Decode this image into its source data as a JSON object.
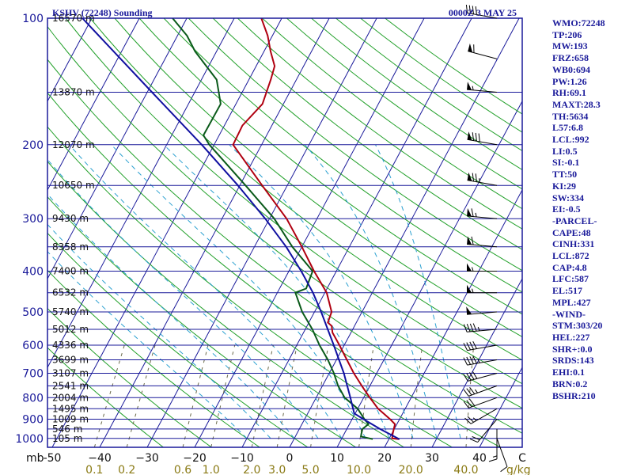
{
  "header": {
    "title": "KSHV (72248) Sounding",
    "datetime": "0000Z  3 MAY 25"
  },
  "indices": [
    "WMO:72248",
    "TP:206",
    "MW:193",
    "FRZ:658",
    "WB0:694",
    "PW:1.26",
    "RH:69.1",
    "MAXT:28.3",
    "TH:5634",
    "L57:6.8",
    "LCL:992",
    "LI:0.5",
    "SI:-0.1",
    "TT:50",
    "KI:29",
    "SW:334",
    "EI:-0.5",
    "-PARCEL-",
    "CAPE:48",
    "CINH:331",
    "LCL:872",
    "CAP:4.8",
    "LFC:587",
    "EL:517",
    "MPL:427",
    "-WIND-",
    "STM:303/20",
    "HEL:227",
    "SHR+:0.0",
    "SRDS:143",
    "EHI:0.1",
    "BRN:0.2",
    "BSHR:210"
  ],
  "chart_data": {
    "type": "skew-t",
    "pressure_axis": {
      "unit_label": "mb",
      "ticks": [
        100,
        200,
        300,
        400,
        500,
        600,
        700,
        800,
        900,
        1000
      ],
      "range": [
        1050,
        100
      ],
      "scale": "log"
    },
    "temperature_axis": {
      "unit_label": "C",
      "ticks": [
        -50,
        -40,
        -30,
        -20,
        -10,
        0,
        10,
        20,
        30,
        40
      ],
      "tick_labels": [
        "-50",
        "−40",
        "−30",
        "−20",
        "−10",
        "0",
        "10",
        "20",
        "30",
        "40"
      ]
    },
    "mixing_ratio_axis": {
      "unit_label": "g/kg",
      "values": [
        0.1,
        0.2,
        0.6,
        1.0,
        2.0,
        3.0,
        5.0,
        10.0,
        20.0,
        40.0
      ],
      "labels": [
        "0.1",
        "0.2",
        "0.6",
        "1.0",
        "2.0",
        "3.0",
        "5.0",
        "10.0",
        "20.0",
        "40.0"
      ]
    },
    "height_labels": [
      {
        "p": 100,
        "text": "16570 m"
      },
      {
        "p": 150,
        "text": "13870 m"
      },
      {
        "p": 200,
        "text": "12070 m"
      },
      {
        "p": 250,
        "text": "10650 m"
      },
      {
        "p": 300,
        "text": "9430 m"
      },
      {
        "p": 350,
        "text": "8358 m"
      },
      {
        "p": 400,
        "text": "7400 m"
      },
      {
        "p": 450,
        "text": "6532 m"
      },
      {
        "p": 500,
        "text": "5740 m"
      },
      {
        "p": 550,
        "text": "5012 m"
      },
      {
        "p": 600,
        "text": "4336 m"
      },
      {
        "p": 650,
        "text": "3699 m"
      },
      {
        "p": 700,
        "text": "3107 m"
      },
      {
        "p": 750,
        "text": "2541 m"
      },
      {
        "p": 800,
        "text": "2004 m"
      },
      {
        "p": 850,
        "text": "1495 m"
      },
      {
        "p": 900,
        "text": "1009 m"
      },
      {
        "p": 950,
        "text": "546 m"
      },
      {
        "p": 1000,
        "text": "105 m"
      }
    ],
    "series": [
      {
        "key": "temperature",
        "color": "#b00010",
        "points": [
          [
            1004,
            22.2
          ],
          [
            1000,
            20.6
          ],
          [
            975,
            20.2
          ],
          [
            950,
            19.9
          ],
          [
            925,
            19.6
          ],
          [
            900,
            18.0
          ],
          [
            850,
            14.3
          ],
          [
            800,
            11.3
          ],
          [
            750,
            8.3
          ],
          [
            700,
            5.2
          ],
          [
            650,
            2.2
          ],
          [
            600,
            -1.0
          ],
          [
            560,
            -3.9
          ],
          [
            540,
            -4.8
          ],
          [
            530,
            -6.0
          ],
          [
            500,
            -6.4
          ],
          [
            450,
            -9.6
          ],
          [
            400,
            -14.7
          ],
          [
            350,
            -20.0
          ],
          [
            300,
            -26.4
          ],
          [
            250,
            -35.3
          ],
          [
            200,
            -46.0
          ],
          [
            180,
            -46.2
          ],
          [
            160,
            -44.4
          ],
          [
            140,
            -45.4
          ],
          [
            130,
            -46.1
          ],
          [
            120,
            -48.6
          ],
          [
            110,
            -51.0
          ],
          [
            100,
            -54.3
          ]
        ]
      },
      {
        "key": "dewpoint",
        "color": "#0a5a1a",
        "points": [
          [
            1004,
            16.6
          ],
          [
            990,
            13.8
          ],
          [
            975,
            13.6
          ],
          [
            950,
            13.3
          ],
          [
            925,
            14.0
          ],
          [
            900,
            12.6
          ],
          [
            850,
            10.0
          ],
          [
            800,
            6.0
          ],
          [
            750,
            3.3
          ],
          [
            700,
            1.0
          ],
          [
            650,
            -1.8
          ],
          [
            600,
            -5.2
          ],
          [
            550,
            -8.5
          ],
          [
            500,
            -12.6
          ],
          [
            450,
            -16.2
          ],
          [
            440,
            -14.4
          ],
          [
            400,
            -15.0
          ],
          [
            350,
            -22.0
          ],
          [
            300,
            -29.0
          ],
          [
            250,
            -38.8
          ],
          [
            200,
            -51.0
          ],
          [
            190,
            -53.3
          ],
          [
            160,
            -53.2
          ],
          [
            140,
            -56.8
          ],
          [
            120,
            -64.5
          ],
          [
            110,
            -68.0
          ],
          [
            100,
            -73.0
          ]
        ]
      },
      {
        "key": "parcel",
        "color": "#1010a0",
        "points": [
          [
            1004,
            22.2
          ],
          [
            950,
            17.0
          ],
          [
            900,
            12.4
          ],
          [
            872,
            9.8
          ],
          [
            800,
            7.2
          ],
          [
            700,
            3.1
          ],
          [
            600,
            -2.2
          ],
          [
            500,
            -8.6
          ],
          [
            450,
            -12.5
          ],
          [
            400,
            -17.4
          ],
          [
            350,
            -23.3
          ],
          [
            300,
            -30.9
          ],
          [
            250,
            -40.4
          ],
          [
            200,
            -52.6
          ],
          [
            150,
            -69.0
          ],
          [
            100,
            -92.0
          ]
        ]
      }
    ],
    "wind_profile": [
      {
        "p": 1000,
        "dir": 160,
        "spd": 10
      },
      {
        "p": 950,
        "dir": 180,
        "spd": 15
      },
      {
        "p": 900,
        "dir": 220,
        "spd": 20
      },
      {
        "p": 850,
        "dir": 240,
        "spd": 25
      },
      {
        "p": 800,
        "dir": 250,
        "spd": 30
      },
      {
        "p": 750,
        "dir": 250,
        "spd": 35
      },
      {
        "p": 700,
        "dir": 255,
        "spd": 40
      },
      {
        "p": 650,
        "dir": 260,
        "spd": 45
      },
      {
        "p": 600,
        "dir": 260,
        "spd": 40
      },
      {
        "p": 550,
        "dir": 265,
        "spd": 45
      },
      {
        "p": 500,
        "dir": 265,
        "spd": 50
      },
      {
        "p": 450,
        "dir": 270,
        "spd": 55
      },
      {
        "p": 400,
        "dir": 270,
        "spd": 55
      },
      {
        "p": 350,
        "dir": 275,
        "spd": 60
      },
      {
        "p": 300,
        "dir": 275,
        "spd": 65
      },
      {
        "p": 250,
        "dir": 280,
        "spd": 75
      },
      {
        "p": 200,
        "dir": 280,
        "spd": 80
      },
      {
        "p": 150,
        "dir": 275,
        "spd": 55
      },
      {
        "p": 125,
        "dir": 285,
        "spd": 60
      },
      {
        "p": 100,
        "dir": 280,
        "spd": 40
      }
    ],
    "colors": {
      "isobar": "#1a1a9a",
      "isotherm": "#1a1a9a",
      "dry_adiabat": "#22a02a",
      "moist_adiabat": "#2aa0d0",
      "mixing_ratio": "#6a6a4a"
    },
    "grid": true
  }
}
